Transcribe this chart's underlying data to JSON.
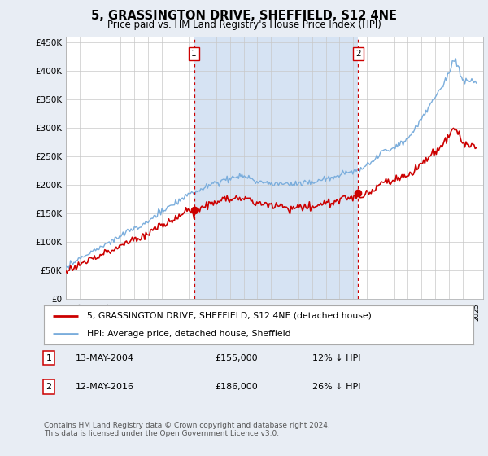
{
  "title": "5, GRASSINGTON DRIVE, SHEFFIELD, S12 4NE",
  "subtitle": "Price paid vs. HM Land Registry's House Price Index (HPI)",
  "hpi_color": "#7aaddc",
  "price_color": "#cc0000",
  "dashed_color": "#cc0000",
  "shade_color": "#ccddf0",
  "sale1_year": 2004.37,
  "sale1_price": 155000,
  "sale2_year": 2016.37,
  "sale2_price": 186000,
  "ylim_min": 0,
  "ylim_max": 460000,
  "yticks": [
    0,
    50000,
    100000,
    150000,
    200000,
    250000,
    300000,
    350000,
    400000,
    450000
  ],
  "ytick_labels": [
    "£0",
    "£50K",
    "£100K",
    "£150K",
    "£200K",
    "£250K",
    "£300K",
    "£350K",
    "£400K",
    "£450K"
  ],
  "legend1": "5, GRASSINGTON DRIVE, SHEFFIELD, S12 4NE (detached house)",
  "legend2": "HPI: Average price, detached house, Sheffield",
  "annotation1_label": "1",
  "annotation1_date": "13-MAY-2004",
  "annotation1_price": "£155,000",
  "annotation1_hpi": "12% ↓ HPI",
  "annotation2_label": "2",
  "annotation2_date": "12-MAY-2016",
  "annotation2_price": "£186,000",
  "annotation2_hpi": "26% ↓ HPI",
  "footer": "Contains HM Land Registry data © Crown copyright and database right 2024.\nThis data is licensed under the Open Government Licence v3.0.",
  "background_color": "#e8edf4",
  "plot_background": "#ffffff"
}
